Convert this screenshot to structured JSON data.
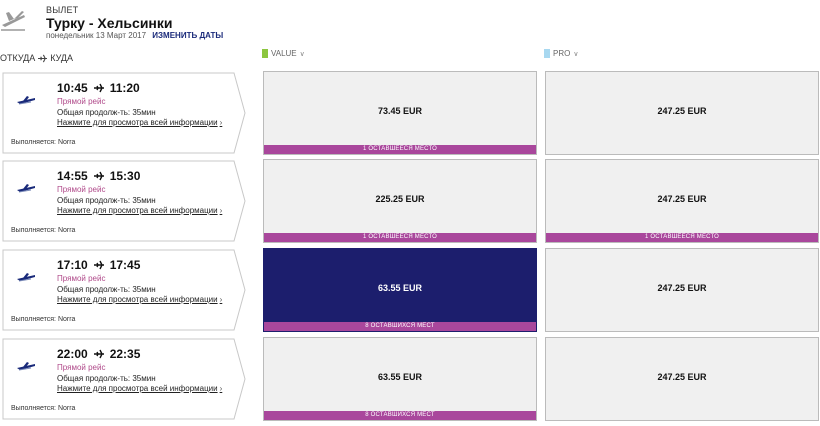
{
  "header": {
    "departure_label": "ВЫЛЕТ",
    "route": "Турку - Хельсинки",
    "date": "понедельник 13 Март 2017",
    "change_dates": "ИЗМЕНИТЬ ДАТЫ"
  },
  "columns": {
    "from_to_prefix": "ОТКУДА",
    "from_to_suffix": "КУДА",
    "value_label": "VALUE",
    "value_color": "#8cc63f",
    "pro_label": "PRO",
    "pro_color": "#a8d8f0"
  },
  "colors": {
    "seats_bar": "#a9479c",
    "selected_fare": "#1c1e6d",
    "direct_text": "#b04a8a"
  },
  "flights": [
    {
      "depart": "10:45",
      "arrive": "11:20",
      "direct": "Прямой рейс",
      "duration": "Общая продолж-ть: 35мин",
      "details": "Нажмите для просмотра всей информации",
      "operated_by": "Выполняется: Norra",
      "value_price": "73.45 EUR",
      "value_seats": "1 ОСТАВШЕЕСЯ МЕСТО",
      "value_selected": false,
      "pro_price": "247.25 EUR",
      "pro_seats": ""
    },
    {
      "depart": "14:55",
      "arrive": "15:30",
      "direct": "Прямой рейс",
      "duration": "Общая продолж-ть: 35мин",
      "details": "Нажмите для просмотра всей информации",
      "operated_by": "Выполняется: Norra",
      "value_price": "225.25 EUR",
      "value_seats": "1 ОСТАВШЕЕСЯ МЕСТО",
      "value_selected": false,
      "pro_price": "247.25 EUR",
      "pro_seats": "1 ОСТАВШЕЕСЯ МЕСТО"
    },
    {
      "depart": "17:10",
      "arrive": "17:45",
      "direct": "Прямой рейс",
      "duration": "Общая продолж-ть: 35мин",
      "details": "Нажмите для просмотра всей информации",
      "operated_by": "Выполняется: Norra",
      "value_price": "63.55 EUR",
      "value_seats": "8 ОСТАВШИХСЯ МЕСТ",
      "value_selected": true,
      "pro_price": "247.25 EUR",
      "pro_seats": ""
    },
    {
      "depart": "22:00",
      "arrive": "22:35",
      "direct": "Прямой рейс",
      "duration": "Общая продолж-ть: 35мин",
      "details": "Нажмите для просмотра всей информации",
      "operated_by": "Выполняется: Norra",
      "value_price": "63.55 EUR",
      "value_seats": "8 ОСТАВШИХСЯ МЕСТ",
      "value_selected": false,
      "pro_price": "247.25 EUR",
      "pro_seats": ""
    }
  ]
}
